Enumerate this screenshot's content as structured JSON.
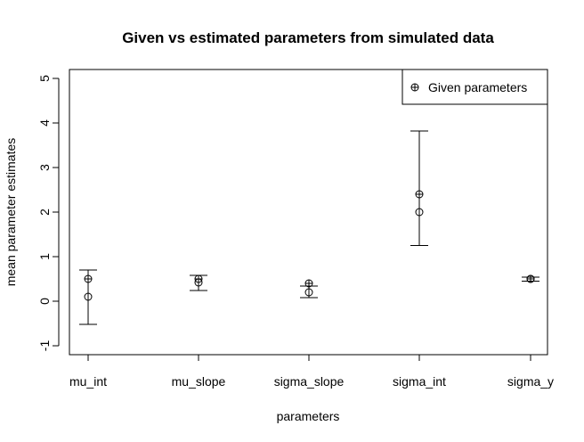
{
  "chart_data": {
    "type": "scatter",
    "title": "Given vs estimated parameters from simulated data",
    "xlabel": "parameters",
    "ylabel": "mean parameter estimates",
    "categories": [
      "mu_int",
      "mu_slope",
      "sigma_slope",
      "sigma_int",
      "sigma_y"
    ],
    "ylim": [
      -1.2,
      5.2
    ],
    "yticks": [
      "-1",
      "0",
      "1",
      "2",
      "3",
      "4",
      "5"
    ],
    "grid": false,
    "legend": {
      "position": "top-right",
      "entries": [
        "Given parameters"
      ]
    },
    "series": [
      {
        "name": "Given parameters",
        "marker": "circle-plus",
        "values": [
          0.5,
          0.5,
          0.4,
          2.4,
          0.5
        ]
      },
      {
        "marker": "circle",
        "values": [
          0.1,
          0.42,
          0.2,
          2.0,
          0.5
        ],
        "error_low": [
          -0.52,
          0.24,
          0.08,
          1.25,
          0.45
        ],
        "error_high": [
          0.7,
          0.58,
          0.34,
          3.82,
          0.54
        ]
      }
    ]
  }
}
